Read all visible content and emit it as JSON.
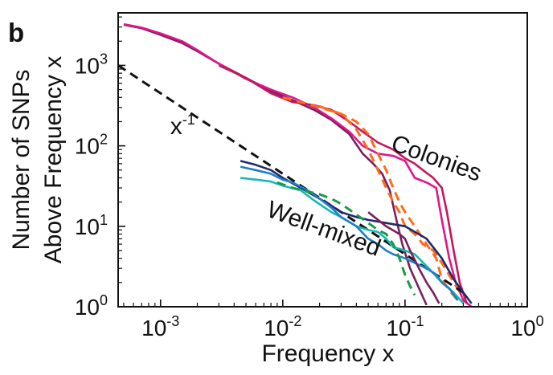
{
  "panel_label": "b",
  "chart_data": {
    "type": "line",
    "xscale": "log",
    "yscale": "log",
    "xlim": [
      0.00045,
      1.0
    ],
    "ylim": [
      1.0,
      4500
    ],
    "xlabel": "Frequency x",
    "ylabel_line1": "Number of SNPs",
    "ylabel_line2": "Above Frequency x",
    "x_ticks": [
      {
        "value": 0.001,
        "base": "10",
        "exp": "-3"
      },
      {
        "value": 0.01,
        "base": "10",
        "exp": "-2"
      },
      {
        "value": 0.1,
        "base": "10",
        "exp": "-1"
      },
      {
        "value": 1.0,
        "base": "10",
        "exp": "0"
      }
    ],
    "y_ticks": [
      {
        "value": 1,
        "base": "10",
        "exp": "0"
      },
      {
        "value": 10,
        "base": "10",
        "exp": "1"
      },
      {
        "value": 100,
        "base": "10",
        "exp": "2"
      },
      {
        "value": 1000,
        "base": "10",
        "exp": "3"
      }
    ],
    "annotations": [
      {
        "text": "Colonies",
        "x": 0.075,
        "y": 90,
        "rotate": 20
      },
      {
        "text": "Well-mixed",
        "x": 0.0072,
        "y": 13.5,
        "rotate": 20
      },
      {
        "text_base": "x",
        "text_exp": "-1",
        "x": 0.0012,
        "y": 140
      }
    ],
    "series": [
      {
        "color": "#7b1f5e",
        "dash": false,
        "points": [
          [
            0.0005,
            3200
          ],
          [
            0.0007,
            2900
          ],
          [
            0.001,
            2400
          ],
          [
            0.0015,
            1900
          ],
          [
            0.002,
            1500
          ],
          [
            0.003,
            1050
          ],
          [
            0.005,
            700
          ],
          [
            0.008,
            480
          ],
          [
            0.012,
            370
          ],
          [
            0.018,
            280
          ],
          [
            0.025,
            210
          ],
          [
            0.035,
            140
          ],
          [
            0.045,
            80
          ],
          [
            0.055,
            60
          ],
          [
            0.065,
            45
          ],
          [
            0.075,
            28
          ],
          [
            0.085,
            12
          ],
          [
            0.095,
            6
          ],
          [
            0.11,
            3
          ],
          [
            0.13,
            1.7
          ],
          [
            0.15,
            1.05
          ]
        ]
      },
      {
        "color": "#e0158a",
        "dash": false,
        "points": [
          [
            0.0005,
            3250
          ],
          [
            0.0007,
            2950
          ],
          [
            0.001,
            2500
          ],
          [
            0.0015,
            2000
          ],
          [
            0.002,
            1550
          ],
          [
            0.003,
            1050
          ],
          [
            0.005,
            680
          ],
          [
            0.008,
            500
          ],
          [
            0.012,
            400
          ],
          [
            0.018,
            300
          ],
          [
            0.025,
            220
          ],
          [
            0.035,
            150
          ],
          [
            0.045,
            100
          ],
          [
            0.06,
            80
          ],
          [
            0.08,
            75
          ],
          [
            0.1,
            65
          ],
          [
            0.12,
            40
          ],
          [
            0.15,
            35
          ],
          [
            0.18,
            30
          ],
          [
            0.2,
            12
          ],
          [
            0.23,
            4
          ],
          [
            0.26,
            2
          ],
          [
            0.3,
            1.2
          ],
          [
            0.35,
            1.0
          ]
        ]
      },
      {
        "color": "#c2185b",
        "dash": false,
        "points": [
          [
            0.003,
            1000
          ],
          [
            0.005,
            700
          ],
          [
            0.008,
            450
          ],
          [
            0.012,
            350
          ],
          [
            0.018,
            320
          ],
          [
            0.025,
            280
          ],
          [
            0.035,
            200
          ],
          [
            0.045,
            150
          ],
          [
            0.06,
            110
          ],
          [
            0.08,
            90
          ],
          [
            0.1,
            70
          ],
          [
            0.12,
            60
          ],
          [
            0.14,
            50
          ],
          [
            0.17,
            40
          ],
          [
            0.2,
            30
          ],
          [
            0.22,
            15
          ],
          [
            0.25,
            5
          ],
          [
            0.28,
            2
          ],
          [
            0.32,
            1.1
          ]
        ]
      },
      {
        "color": "#ff6a1a",
        "dash": true,
        "points": [
          [
            0.01,
            400
          ],
          [
            0.015,
            340
          ],
          [
            0.02,
            300
          ],
          [
            0.03,
            250
          ],
          [
            0.04,
            200
          ],
          [
            0.05,
            140
          ],
          [
            0.06,
            80
          ],
          [
            0.07,
            50
          ],
          [
            0.08,
            30
          ],
          [
            0.09,
            20
          ],
          [
            0.1,
            15
          ],
          [
            0.12,
            10
          ],
          [
            0.15,
            6
          ],
          [
            0.18,
            4
          ],
          [
            0.2,
            2.2
          ],
          [
            0.23,
            1.6
          ],
          [
            0.27,
            1.2
          ]
        ]
      },
      {
        "color": "#ff6a1a",
        "dash": true,
        "points": [
          [
            0.02,
            310
          ],
          [
            0.03,
            250
          ],
          [
            0.04,
            160
          ],
          [
            0.05,
            90
          ],
          [
            0.06,
            50
          ],
          [
            0.07,
            30
          ],
          [
            0.08,
            20
          ],
          [
            0.09,
            15
          ],
          [
            0.1,
            10
          ],
          [
            0.12,
            8
          ],
          [
            0.14,
            6
          ],
          [
            0.17,
            5
          ],
          [
            0.2,
            3.5
          ],
          [
            0.25,
            2
          ],
          [
            0.3,
            1.3
          ]
        ]
      },
      {
        "color": "#111111",
        "dash": true,
        "points": [
          [
            0.00045,
            1000
          ],
          [
            0.3,
            1.5
          ]
        ]
      },
      {
        "color": "#1f2a6b",
        "dash": false,
        "points": [
          [
            0.0045,
            65
          ],
          [
            0.006,
            58
          ],
          [
            0.008,
            50
          ],
          [
            0.01,
            40
          ],
          [
            0.014,
            30
          ],
          [
            0.02,
            22
          ],
          [
            0.025,
            18
          ],
          [
            0.03,
            15
          ],
          [
            0.04,
            13
          ],
          [
            0.05,
            12
          ],
          [
            0.07,
            11
          ],
          [
            0.1,
            10
          ],
          [
            0.15,
            7
          ],
          [
            0.2,
            4
          ],
          [
            0.25,
            2.2
          ],
          [
            0.3,
            1.5
          ],
          [
            0.35,
            1.1
          ]
        ]
      },
      {
        "color": "#17b8b2",
        "dash": false,
        "points": [
          [
            0.0045,
            40
          ],
          [
            0.006,
            38
          ],
          [
            0.008,
            36
          ],
          [
            0.01,
            32
          ],
          [
            0.014,
            28
          ],
          [
            0.018,
            21
          ],
          [
            0.025,
            15
          ],
          [
            0.03,
            13
          ],
          [
            0.04,
            10
          ],
          [
            0.05,
            9
          ],
          [
            0.06,
            8.5
          ],
          [
            0.07,
            7
          ],
          [
            0.08,
            5.5
          ],
          [
            0.1,
            5
          ],
          [
            0.12,
            4.5
          ],
          [
            0.15,
            3.2
          ],
          [
            0.2,
            2
          ],
          [
            0.25,
            1.5
          ],
          [
            0.3,
            1.1
          ]
        ]
      },
      {
        "color": "#1e7fc8",
        "dash": false,
        "points": [
          [
            0.0045,
            55
          ],
          [
            0.006,
            50
          ],
          [
            0.008,
            45
          ],
          [
            0.01,
            38
          ],
          [
            0.012,
            35
          ],
          [
            0.016,
            28
          ],
          [
            0.02,
            22
          ],
          [
            0.025,
            17
          ],
          [
            0.03,
            13
          ],
          [
            0.04,
            10
          ],
          [
            0.05,
            7
          ],
          [
            0.06,
            6
          ],
          [
            0.07,
            5
          ],
          [
            0.08,
            4.5
          ],
          [
            0.1,
            4
          ],
          [
            0.12,
            3.5
          ],
          [
            0.15,
            3
          ],
          [
            0.18,
            2.5
          ],
          [
            0.2,
            2
          ],
          [
            0.23,
            1.7
          ],
          [
            0.27,
            1.2
          ]
        ]
      },
      {
        "color": "#1a9a4a",
        "dash": true,
        "points": [
          [
            0.009,
            35
          ],
          [
            0.012,
            30
          ],
          [
            0.016,
            27
          ],
          [
            0.02,
            25
          ],
          [
            0.025,
            22
          ],
          [
            0.03,
            19
          ],
          [
            0.04,
            14
          ],
          [
            0.05,
            11
          ],
          [
            0.06,
            9
          ],
          [
            0.07,
            8
          ],
          [
            0.08,
            6
          ],
          [
            0.09,
            4
          ],
          [
            0.1,
            2.5
          ],
          [
            0.11,
            1.8
          ],
          [
            0.12,
            1.4
          ]
        ]
      },
      {
        "color": "#7b1f5e",
        "dash": false,
        "points": [
          [
            0.05,
            15
          ],
          [
            0.07,
            10
          ],
          [
            0.09,
            8
          ],
          [
            0.1,
            7
          ],
          [
            0.11,
            5
          ],
          [
            0.13,
            3
          ],
          [
            0.15,
            2
          ],
          [
            0.17,
            1.5
          ],
          [
            0.19,
            1.1
          ]
        ]
      }
    ]
  }
}
